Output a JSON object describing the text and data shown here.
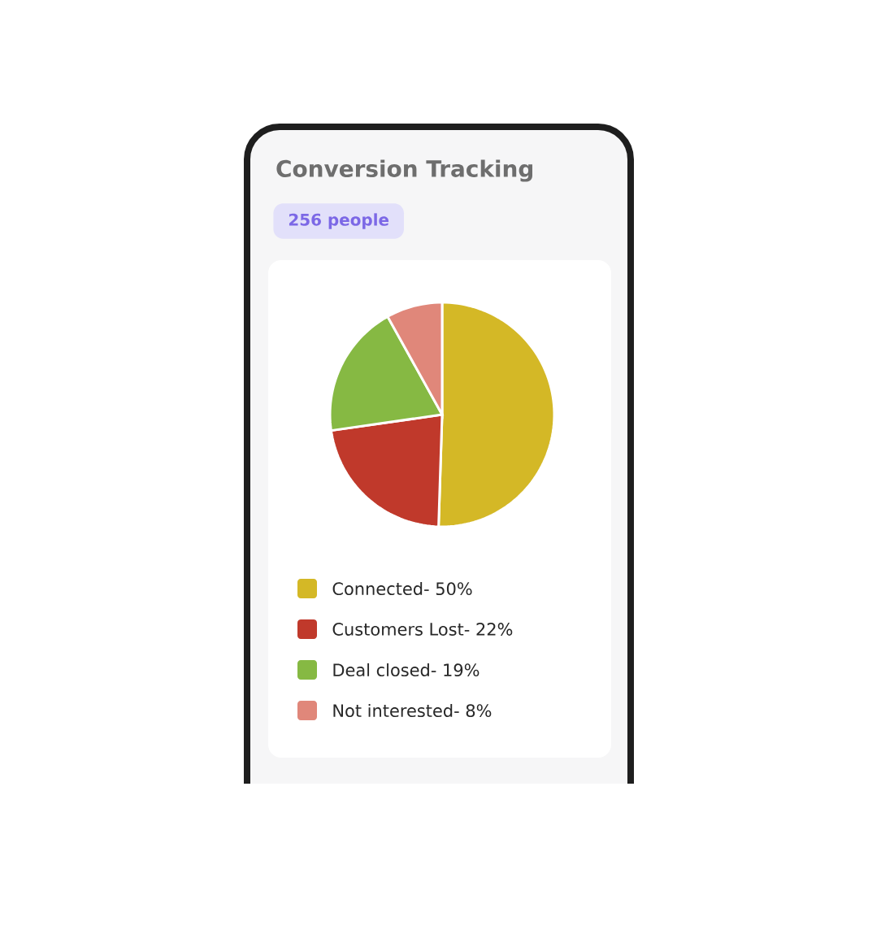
{
  "chart_data": {
    "type": "pie",
    "title": "Conversion Tracking",
    "subtitle": "256 people",
    "categories": [
      "Connected- 50%",
      "Customers Lost- 22%",
      "Deal closed- 19%",
      "Not interested- 8%"
    ],
    "values": [
      50,
      22,
      19,
      8
    ],
    "colors": [
      "#d4b826",
      "#c0392b",
      "#86b943",
      "#e0877a"
    ],
    "legend": "bottom"
  }
}
